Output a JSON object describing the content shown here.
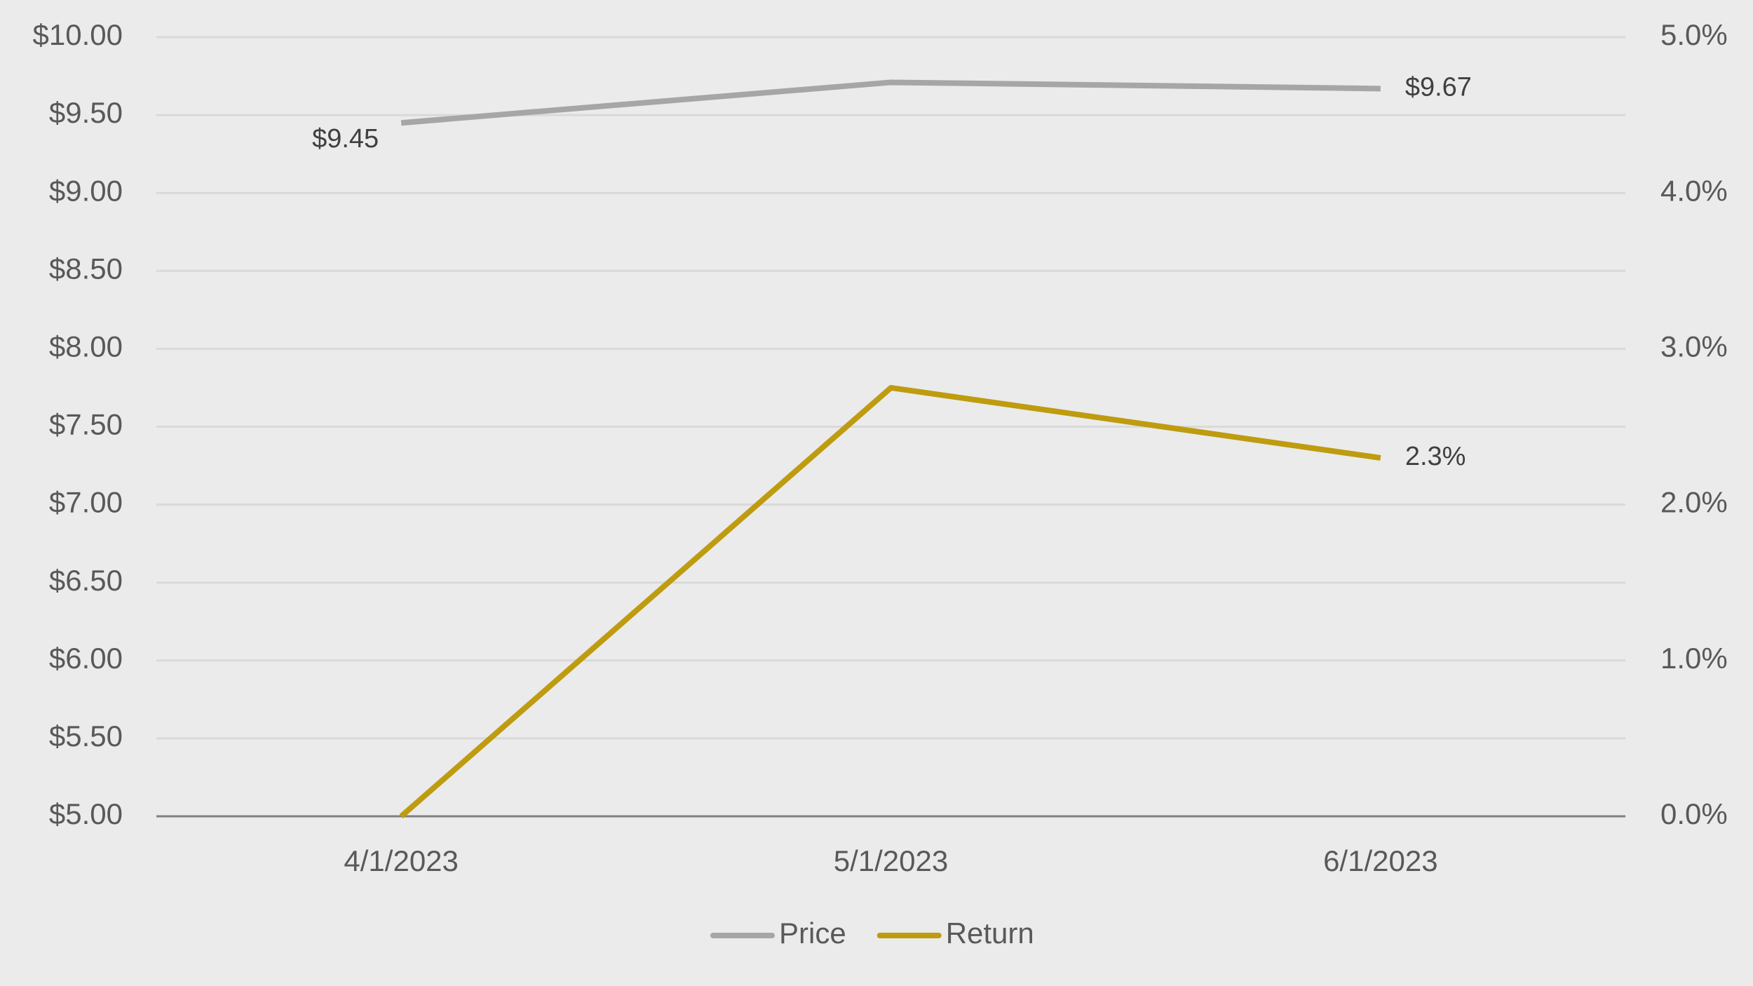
{
  "chart_data": {
    "type": "line",
    "categories": [
      "4/1/2023",
      "5/1/2023",
      "6/1/2023"
    ],
    "series": [
      {
        "name": "Price",
        "color": "#a6a6a6",
        "values": [
          9.45,
          9.71,
          9.67
        ],
        "value_labels": [
          "$9.45",
          null,
          "$9.67"
        ]
      },
      {
        "name": "Return",
        "color": "#bf9b0f",
        "axis": "y2",
        "values": [
          0.0,
          2.75,
          2.3
        ],
        "value_labels": [
          null,
          null,
          "2.3%"
        ]
      }
    ],
    "ylim": [
      5,
      10
    ],
    "yticks": [
      {
        "value": 5,
        "label": "$5.00"
      },
      {
        "value": 5.5,
        "label": "$5.50"
      },
      {
        "value": 6,
        "label": "$6.00"
      },
      {
        "value": 6.5,
        "label": "$6.50"
      },
      {
        "value": 7,
        "label": "$7.00"
      },
      {
        "value": 7.5,
        "label": "$7.50"
      },
      {
        "value": 8,
        "label": "$8.00"
      },
      {
        "value": 8.5,
        "label": "$8.50"
      },
      {
        "value": 9,
        "label": "$9.00"
      },
      {
        "value": 9.5,
        "label": "$9.50"
      },
      {
        "value": 10,
        "label": "$10.00"
      }
    ],
    "y2lim": [
      0,
      5
    ],
    "y2ticks": [
      {
        "value": 0,
        "label": "0.0%"
      },
      {
        "value": 1,
        "label": "1.0%"
      },
      {
        "value": 2,
        "label": "2.0%"
      },
      {
        "value": 3,
        "label": "3.0%"
      },
      {
        "value": 4,
        "label": "4.0%"
      },
      {
        "value": 5,
        "label": "5.0%"
      }
    ],
    "grid": true,
    "legend": "bottom"
  }
}
